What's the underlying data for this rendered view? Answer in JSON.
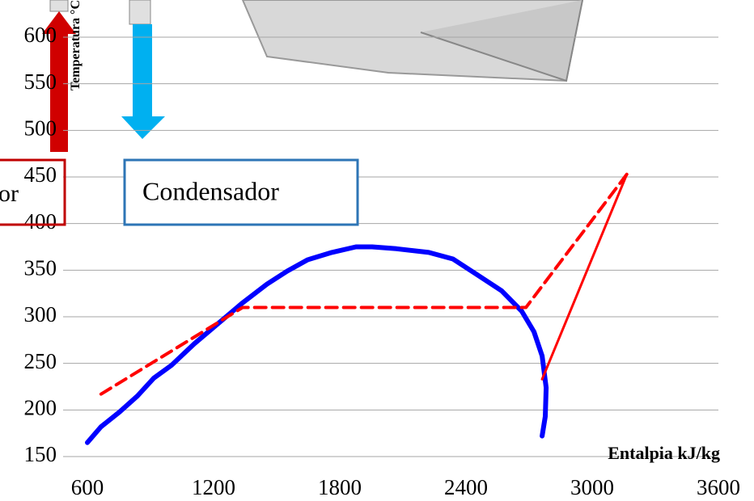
{
  "chart_data": {
    "type": "line",
    "xlabel": "Entalpia kJ/kg",
    "ylabel": "Temperatura °C",
    "annotations": [
      "Condensador",
      "or"
    ],
    "xlim": [
      600,
      3600
    ],
    "xticks": [
      600,
      1200,
      1800,
      2400,
      3000,
      3600
    ],
    "ylim": [
      150,
      600
    ],
    "yticks": [
      150,
      200,
      250,
      300,
      350,
      400,
      450,
      500,
      550,
      600
    ],
    "grid": true,
    "series": [
      {
        "color": "#0000ff",
        "line_style": "solid",
        "width": 6,
        "x": [
          600,
          665,
          754,
          838,
          915,
          1000,
          1108,
          1223,
          1338,
          1454,
          1550,
          1646,
          1762,
          1877,
          1954,
          2069,
          2223,
          2338,
          2454,
          2569,
          2665,
          2723,
          2762,
          2781,
          2777,
          2762
        ],
        "values": [
          165,
          182,
          198,
          215,
          234,
          248,
          271,
          293,
          315,
          335,
          349,
          361,
          369,
          375,
          375,
          373,
          369,
          362,
          345,
          328,
          306,
          284,
          258,
          224,
          193,
          172
        ]
      },
      {
        "color": "#ff0000",
        "line_style": "dashed",
        "width": 4,
        "x": [
          665,
          1338,
          2685,
          3165
        ],
        "values": [
          217,
          310,
          310,
          453
        ]
      },
      {
        "color": "#ff0000",
        "line_style": "solid",
        "width": 3,
        "x": [
          2762,
          3165
        ],
        "values": [
          233,
          453
        ]
      }
    ]
  }
}
